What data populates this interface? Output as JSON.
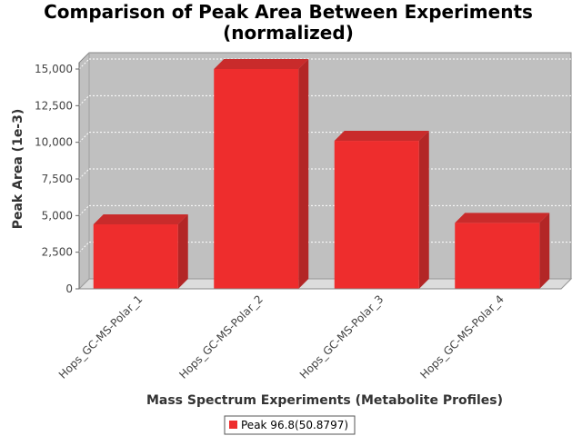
{
  "chart_data": {
    "type": "bar",
    "title_lines": [
      "Comparison of Peak Area Between Experiments",
      "(normalized)"
    ],
    "xlabel": "Mass Spectrum Experiments (Metabolite Profiles)",
    "ylabel": "Peak Area (1e-3)",
    "categories": [
      "Hops_GC-MS-Polar_1",
      "Hops_GC-MS-Polar_2",
      "Hops_GC-MS-Polar_3",
      "Hops_GC-MS-Polar_4"
    ],
    "series": [
      {
        "name": "Peak 96.8(50.8797)",
        "values": [
          4400,
          15000,
          10100,
          4500
        ],
        "color": "#ee2d2d"
      }
    ],
    "ylim": [
      0,
      15000
    ],
    "yticks": [
      0,
      2500,
      5000,
      7500,
      10000,
      12500,
      15000
    ],
    "ytick_labels": [
      "0",
      "2,500",
      "5,000",
      "7,500",
      "10,000",
      "12,500",
      "15,000"
    ],
    "grid": true,
    "legend_position": "bottom",
    "colors": {
      "plot_background": "#c0c0c0",
      "floor": "#dcdcdc",
      "bar_front": "#ee2d2d",
      "bar_side": "#b32626",
      "bar_top": "#c92b2b"
    }
  }
}
